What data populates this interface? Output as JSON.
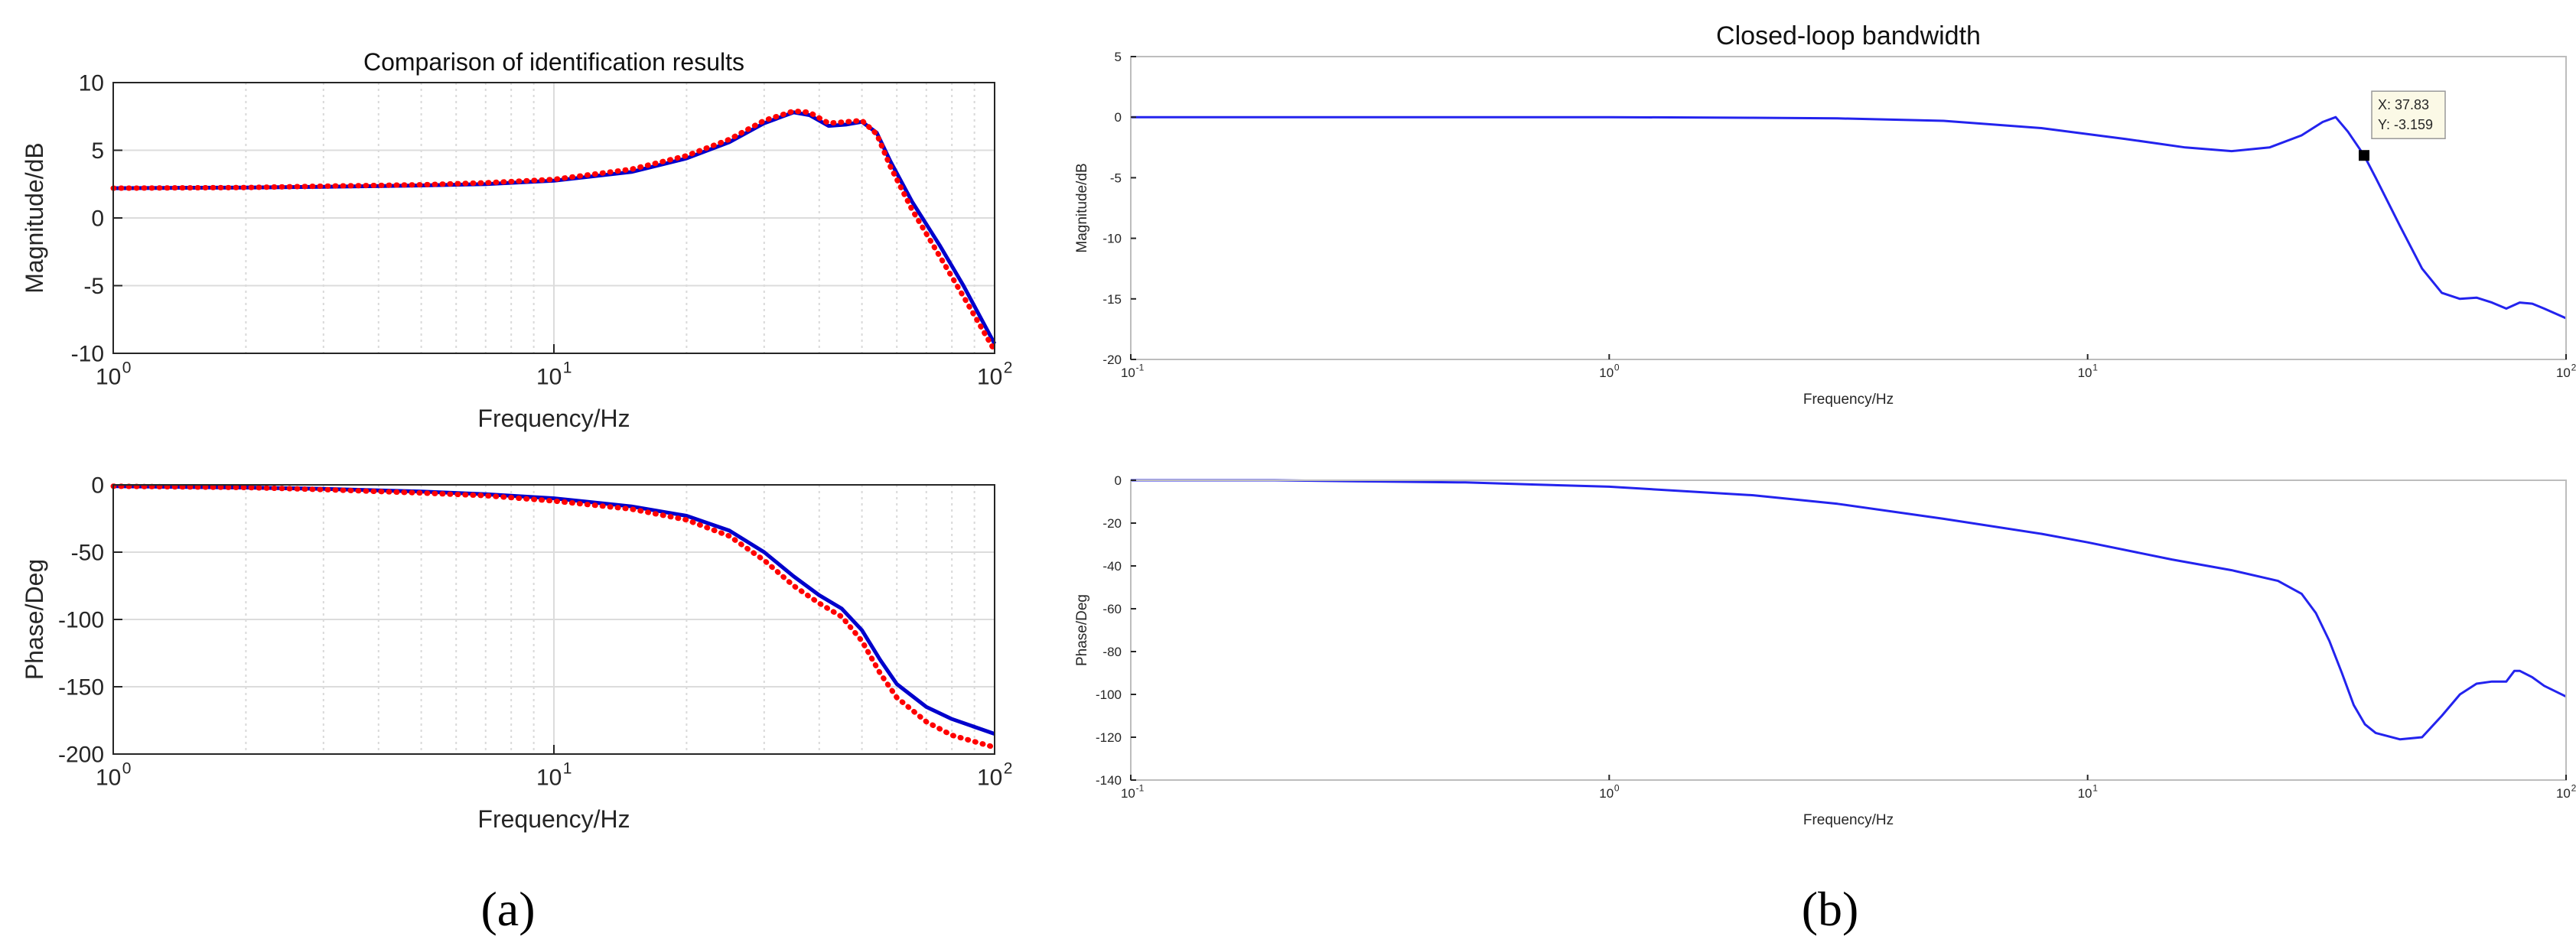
{
  "panels": [
    {
      "id": "a",
      "label": "(a)"
    },
    {
      "id": "b",
      "label": "(b)"
    }
  ],
  "chart_data": [
    {
      "type": "line",
      "panel": "(a)",
      "title": "Comparison of identification results",
      "xlabel": "Frequency/Hz",
      "ylabel": "Magnitude/dB",
      "xscale": "log",
      "xlim": [
        1,
        100
      ],
      "ylim": [
        -10,
        10
      ],
      "xticks": [
        1,
        10,
        100
      ],
      "xtick_labels": [
        [
          "10",
          "0"
        ],
        [
          "10",
          "1"
        ],
        [
          "10",
          "2"
        ]
      ],
      "yticks": [
        -10,
        -5,
        0,
        5,
        10
      ],
      "grid": true,
      "series": [
        {
          "color": "#0000cc",
          "style": "solid",
          "x": [
            1,
            2,
            3,
            5,
            7,
            10,
            15,
            20,
            25,
            30,
            35,
            38,
            42,
            46,
            50,
            54,
            58,
            65,
            75,
            85,
            100
          ],
          "y": [
            2.2,
            2.25,
            2.3,
            2.4,
            2.5,
            2.75,
            3.4,
            4.4,
            5.6,
            7.0,
            7.8,
            7.6,
            6.8,
            6.9,
            7.1,
            6.3,
            4.2,
            1.2,
            -2.0,
            -5.0,
            -9.3
          ]
        },
        {
          "color": "#ff0000",
          "style": "dotted",
          "x": [
            1,
            2,
            3,
            5,
            7,
            10,
            15,
            20,
            25,
            30,
            35,
            38,
            42,
            46,
            50,
            54,
            58,
            65,
            75,
            85,
            100
          ],
          "y": [
            2.2,
            2.25,
            2.35,
            2.45,
            2.6,
            2.85,
            3.6,
            4.6,
            5.8,
            7.2,
            7.9,
            7.8,
            7.0,
            7.1,
            7.2,
            6.2,
            3.8,
            0.6,
            -2.8,
            -5.8,
            -9.8
          ]
        }
      ]
    },
    {
      "type": "line",
      "panel": "(a)",
      "title": "",
      "xlabel": "Frequency/Hz",
      "ylabel": "Phase/Deg",
      "xscale": "log",
      "xlim": [
        1,
        100
      ],
      "ylim": [
        -200,
        0
      ],
      "xticks": [
        1,
        10,
        100
      ],
      "xtick_labels": [
        [
          "10",
          "0"
        ],
        [
          "10",
          "1"
        ],
        [
          "10",
          "2"
        ]
      ],
      "yticks": [
        -200,
        -150,
        -100,
        -50,
        0
      ],
      "grid": true,
      "series": [
        {
          "color": "#0000cc",
          "style": "solid",
          "x": [
            1,
            2,
            3,
            5,
            7,
            10,
            15,
            20,
            25,
            30,
            35,
            40,
            45,
            50,
            55,
            60,
            70,
            80,
            100
          ],
          "y": [
            -1,
            -2,
            -3,
            -5,
            -7,
            -10,
            -16,
            -23,
            -34,
            -50,
            -68,
            -82,
            -92,
            -108,
            -130,
            -148,
            -165,
            -174,
            -185
          ]
        },
        {
          "color": "#ff0000",
          "style": "dotted",
          "x": [
            1,
            2,
            3,
            5,
            7,
            10,
            15,
            20,
            25,
            30,
            35,
            40,
            45,
            50,
            55,
            60,
            70,
            80,
            100
          ],
          "y": [
            -1,
            -2,
            -3.5,
            -6,
            -8,
            -12,
            -18,
            -26,
            -38,
            -56,
            -75,
            -88,
            -98,
            -116,
            -140,
            -158,
            -176,
            -186,
            -195
          ]
        }
      ]
    },
    {
      "type": "line",
      "panel": "(b)",
      "title": "Closed-loop bandwidth",
      "xlabel": "Frequency/Hz",
      "ylabel": "Magnitude/dB",
      "xscale": "log",
      "xlim": [
        0.1,
        100
      ],
      "ylim": [
        -20,
        5
      ],
      "xticks": [
        0.1,
        1,
        10,
        100
      ],
      "xtick_labels": [
        [
          "10",
          "-1"
        ],
        [
          "10",
          "0"
        ],
        [
          "10",
          "1"
        ],
        [
          "10",
          "2"
        ]
      ],
      "yticks": [
        -20,
        -15,
        -10,
        -5,
        0,
        5
      ],
      "grid": false,
      "datatip": {
        "x": 37.83,
        "y": -3.159,
        "lines": [
          "X: 37.83",
          "Y: -3.159"
        ]
      },
      "series": [
        {
          "color": "#2323ee",
          "style": "solid",
          "x": [
            0.1,
            0.3,
            1,
            2,
            3,
            5,
            8,
            12,
            16,
            20,
            24,
            28,
            31,
            33,
            35,
            37.83,
            40,
            45,
            50,
            55,
            60,
            65,
            70,
            75,
            80,
            85,
            90,
            100
          ],
          "y": [
            0,
            0,
            0,
            -0.05,
            -0.1,
            -0.3,
            -0.9,
            -1.8,
            -2.5,
            -2.8,
            -2.5,
            -1.5,
            -0.4,
            0,
            -1.2,
            -3.159,
            -5,
            -9,
            -12.5,
            -14.5,
            -15,
            -14.9,
            -15.3,
            -15.8,
            -15.3,
            -15.4,
            -15.8,
            -16.6
          ]
        }
      ]
    },
    {
      "type": "line",
      "panel": "(b)",
      "title": "",
      "xlabel": "Frequency/Hz",
      "ylabel": "Phase/Deg",
      "xscale": "log",
      "xlim": [
        0.1,
        100
      ],
      "ylim": [
        -140,
        0
      ],
      "xticks": [
        0.1,
        1,
        10,
        100
      ],
      "xtick_labels": [
        [
          "10",
          "-1"
        ],
        [
          "10",
          "0"
        ],
        [
          "10",
          "1"
        ],
        [
          "10",
          "2"
        ]
      ],
      "yticks": [
        -140,
        -120,
        -100,
        -80,
        -60,
        -40,
        -20,
        0
      ],
      "grid": false,
      "series": [
        {
          "color": "#2323ee",
          "style": "solid",
          "x": [
            0.1,
            0.2,
            0.3,
            0.5,
            0.7,
            1,
            2,
            3,
            5,
            8,
            10,
            15,
            20,
            25,
            28,
            30,
            32,
            34,
            36,
            38,
            40,
            45,
            50,
            55,
            60,
            65,
            70,
            75,
            78,
            80,
            85,
            90,
            100
          ],
          "y": [
            0,
            0,
            -0.5,
            -1,
            -2,
            -3,
            -7,
            -11,
            -18,
            -25,
            -29,
            -37,
            -42,
            -47,
            -53,
            -62,
            -75,
            -90,
            -105,
            -114,
            -118,
            -121,
            -120,
            -110,
            -100,
            -95,
            -94,
            -94,
            -89,
            -89,
            -92,
            -96,
            -101
          ]
        }
      ]
    }
  ]
}
